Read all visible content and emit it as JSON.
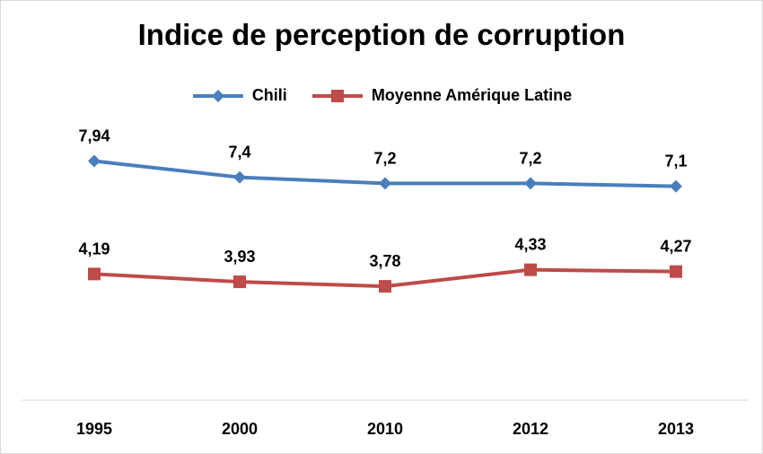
{
  "chart_data": {
    "type": "line",
    "title": "Indice de perception de corruption",
    "categories": [
      "1995",
      "2000",
      "2010",
      "2012",
      "2013"
    ],
    "series": [
      {
        "name": "Chili",
        "values": [
          7.94,
          7.4,
          7.2,
          7.2,
          7.1
        ],
        "labels": [
          "7,94",
          "7,4",
          "7,2",
          "7,2",
          "7,1"
        ],
        "color": "#4a7ebb",
        "marker": "diamond"
      },
      {
        "name": "Moyenne Amérique Latine",
        "values": [
          4.19,
          3.93,
          3.78,
          4.33,
          4.27
        ],
        "labels": [
          "4,19",
          "3,93",
          "3,78",
          "4,33",
          "4,27"
        ],
        "color": "#be4b48",
        "marker": "square"
      }
    ],
    "xlabel": "",
    "ylabel": "",
    "ylim": [
      0,
      11.5
    ],
    "grid": false,
    "legend_position": "top"
  }
}
